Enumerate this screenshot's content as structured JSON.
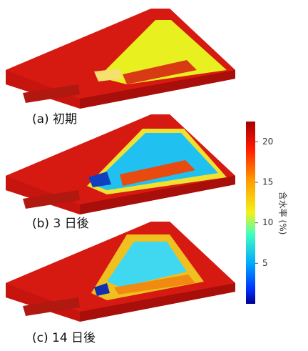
{
  "panels": [
    {
      "caption": "(a) 初期"
    },
    {
      "caption": "(b) 3 日後"
    },
    {
      "caption": "(c) 14 日後"
    }
  ],
  "colorbar": {
    "label": "含水率 (%)",
    "range": [
      0,
      22.5
    ],
    "ticks": [
      20,
      15,
      10,
      5
    ]
  }
}
